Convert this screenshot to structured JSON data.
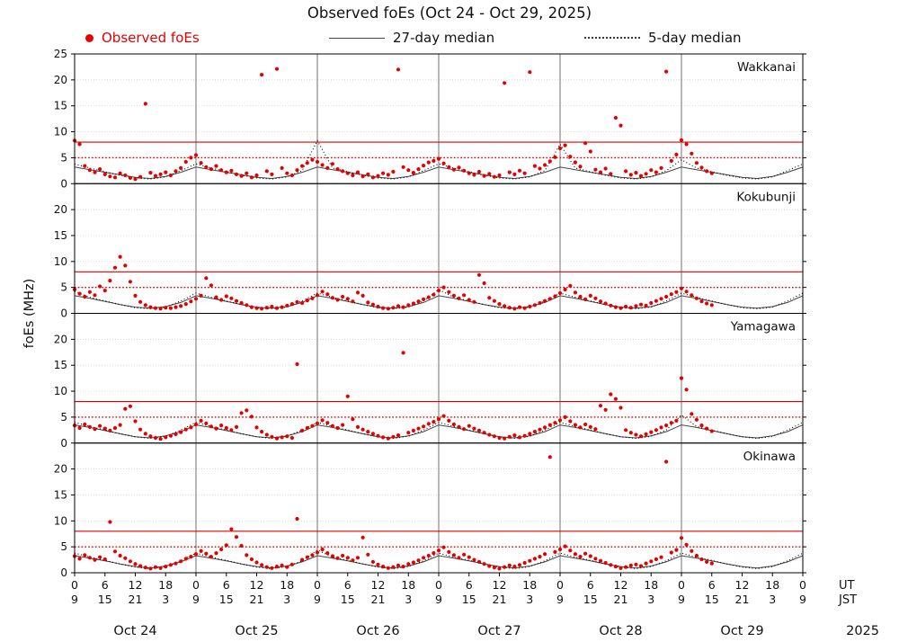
{
  "title": "Observed foEs (Oct 24 - Oct 29, 2025)",
  "legend": [
    {
      "label": "Observed foEs",
      "type": "scatter"
    },
    {
      "label": "27-day median",
      "type": "solid-line"
    },
    {
      "label": "5-day median",
      "type": "dotted-line"
    }
  ],
  "colors": {
    "observed": "#e50000",
    "median27": "#444444",
    "median5": "#000000",
    "threshold": "#dd0000",
    "grid": "#c9c9c9",
    "dayline": "#606060"
  },
  "axes": {
    "ylabel": "foEs (MHz)",
    "ylim": [
      0,
      25
    ],
    "y_ticks": [
      0,
      5,
      10,
      15,
      20,
      25
    ],
    "x_hours_total": 144,
    "x_tick_interval_hours": 6,
    "ut_cycle": [
      "0",
      "6",
      "12",
      "18"
    ],
    "jst_cycle": [
      "9",
      "15",
      "21",
      "3"
    ],
    "ut_axis_label": "UT",
    "jst_axis_label": "JST",
    "dates": [
      "Oct 24",
      "Oct 25",
      "Oct 26",
      "Oct 27",
      "Oct 28",
      "Oct 29"
    ],
    "year_label": "2025"
  },
  "chart_data": [
    {
      "type": "scatter",
      "station": "Wakkanai",
      "thresholds": {
        "solid_red_mhz": 8.0,
        "dotted_red_mhz": 5.0
      },
      "observed_start_hour": 0,
      "observed_step_hours": 1,
      "observed": [
        8.3,
        7.6,
        3.4,
        2.6,
        2.2,
        2.8,
        1.8,
        1.4,
        1.2,
        2.0,
        1.6,
        1.1,
        0.9,
        1.3,
        15.4,
        2.1,
        1.5,
        1.8,
        2.2,
        1.6,
        2.4,
        3.0,
        4.2,
        5.0,
        5.5,
        4.0,
        3.2,
        2.8,
        3.4,
        2.6,
        2.2,
        2.5,
        1.8,
        1.5,
        2.0,
        1.2,
        1.6,
        21.0,
        2.4,
        1.8,
        22.1,
        3.0,
        2.0,
        1.6,
        2.6,
        3.4,
        4.0,
        4.6,
        4.2,
        3.6,
        3.0,
        3.8,
        2.8,
        2.4,
        2.0,
        1.6,
        2.2,
        1.4,
        1.8,
        1.2,
        1.5,
        2.0,
        1.7,
        2.3,
        22.0,
        3.2,
        2.6,
        2.1,
        2.8,
        3.5,
        4.1,
        4.4,
        4.8,
        3.9,
        3.2,
        2.7,
        3.1,
        2.5,
        2.0,
        1.7,
        2.3,
        1.5,
        1.9,
        1.3,
        1.6,
        19.4,
        2.2,
        1.8,
        2.5,
        2.0,
        21.5,
        3.4,
        2.9,
        3.6,
        4.3,
        5.1,
        6.8,
        7.4,
        5.2,
        4.1,
        3.3,
        7.8,
        6.2,
        2.7,
        2.2,
        2.9,
        1.9,
        12.7,
        11.2,
        2.4,
        1.7,
        2.1,
        1.5,
        1.9,
        2.6,
        2.2,
        3.0,
        21.6,
        4.4,
        5.6,
        8.4,
        7.6,
        5.8,
        4.0,
        3.1,
        2.4,
        2.0
      ],
      "median27": {
        "step_hours": 3,
        "values": [
          3.2,
          2.7,
          2.2,
          1.7,
          1.2,
          1.0,
          1.4,
          2.2,
          3.2,
          2.7,
          2.2,
          1.7,
          1.2,
          1.0,
          1.4,
          2.2,
          3.2,
          2.7,
          2.2,
          1.7,
          1.2,
          1.0,
          1.4,
          2.2,
          3.2,
          2.7,
          2.2,
          1.7,
          1.2,
          1.0,
          1.4,
          2.2,
          3.2,
          2.7,
          2.2,
          1.7,
          1.2,
          1.0,
          1.4,
          2.2,
          3.2,
          2.7,
          2.2,
          1.7,
          1.2,
          1.0,
          1.4,
          2.2,
          3.2
        ]
      },
      "median5": {
        "step_hours": 3,
        "values": [
          3.8,
          3.0,
          2.3,
          1.6,
          1.1,
          0.9,
          1.3,
          2.5,
          3.8,
          3.0,
          2.3,
          1.6,
          1.1,
          0.9,
          1.3,
          2.5,
          8.3,
          3.0,
          2.3,
          1.6,
          1.1,
          0.9,
          1.3,
          2.5,
          3.8,
          3.0,
          2.3,
          1.6,
          1.1,
          0.9,
          1.3,
          2.5,
          7.6,
          3.0,
          2.3,
          1.6,
          1.1,
          0.9,
          1.3,
          2.5,
          4.6,
          3.0,
          2.3,
          1.6,
          1.1,
          0.9,
          1.3,
          2.5,
          3.8
        ]
      }
    },
    {
      "type": "scatter",
      "station": "Kokubunji",
      "thresholds": {
        "solid_red_mhz": 8.0,
        "dotted_red_mhz": 5.0
      },
      "observed_start_hour": 0,
      "observed_step_hours": 1,
      "observed": [
        4.6,
        3.8,
        3.2,
        4.1,
        3.5,
        5.2,
        4.4,
        6.3,
        8.8,
        10.9,
        9.2,
        6.1,
        3.4,
        2.2,
        1.6,
        1.2,
        1.0,
        0.9,
        1.1,
        1.0,
        1.2,
        1.4,
        1.8,
        2.3,
        2.8,
        3.4,
        6.8,
        5.4,
        3.1,
        2.6,
        3.3,
        2.9,
        2.4,
        2.0,
        1.6,
        1.2,
        1.0,
        0.9,
        1.1,
        1.3,
        1.0,
        1.2,
        1.5,
        1.8,
        2.2,
        2.0,
        2.5,
        2.9,
        3.5,
        4.2,
        3.7,
        3.0,
        2.6,
        3.2,
        2.8,
        2.3,
        4.0,
        3.4,
        2.1,
        1.7,
        1.3,
        1.0,
        0.9,
        1.1,
        1.4,
        1.2,
        1.6,
        1.9,
        2.3,
        2.7,
        3.1,
        3.6,
        4.4,
        5.0,
        4.1,
        3.4,
        2.9,
        3.5,
        2.6,
        2.2,
        7.4,
        5.8,
        3.0,
        2.4,
        1.8,
        1.4,
        1.1,
        0.9,
        1.2,
        1.0,
        1.3,
        1.6,
        2.0,
        2.4,
        2.8,
        3.3,
        3.9,
        4.6,
        5.3,
        4.0,
        3.2,
        2.7,
        3.4,
        2.9,
        2.3,
        1.9,
        1.5,
        1.2,
        1.0,
        1.3,
        1.1,
        1.4,
        1.7,
        1.5,
        2.0,
        2.4,
        2.8,
        3.2,
        3.7,
        4.1,
        4.8,
        4.2,
        3.5,
        2.9,
        2.3,
        1.9,
        1.6
      ],
      "median27": {
        "step_hours": 3,
        "values": [
          3.4,
          2.9,
          2.3,
          1.7,
          1.2,
          1.0,
          1.3,
          2.1,
          3.4,
          2.9,
          2.3,
          1.7,
          1.2,
          1.0,
          1.3,
          2.1,
          3.4,
          2.9,
          2.3,
          1.7,
          1.2,
          1.0,
          1.3,
          2.1,
          3.4,
          2.9,
          2.3,
          1.7,
          1.2,
          1.0,
          1.3,
          2.1,
          3.4,
          2.9,
          2.3,
          1.7,
          1.2,
          1.0,
          1.3,
          2.1,
          3.4,
          2.9,
          2.3,
          1.7,
          1.2,
          1.0,
          1.3,
          2.1,
          3.4
        ]
      },
      "median5": {
        "step_hours": 3,
        "values": [
          4.2,
          3.1,
          2.4,
          1.7,
          1.1,
          0.9,
          1.2,
          2.4,
          3.9,
          3.1,
          2.4,
          1.7,
          1.1,
          0.9,
          1.2,
          2.4,
          3.9,
          3.1,
          2.4,
          1.7,
          1.1,
          0.9,
          1.2,
          2.4,
          4.6,
          3.1,
          2.4,
          1.7,
          1.1,
          0.9,
          1.2,
          2.4,
          3.9,
          3.1,
          2.4,
          1.7,
          1.1,
          0.9,
          1.2,
          2.4,
          3.9,
          3.1,
          2.4,
          1.7,
          1.1,
          0.9,
          1.2,
          2.4,
          3.9
        ]
      }
    },
    {
      "type": "scatter",
      "station": "Yamagawa",
      "thresholds": {
        "solid_red_mhz": 8.0,
        "dotted_red_mhz": 5.0
      },
      "observed_start_hour": 0,
      "observed_step_hours": 1,
      "observed": [
        3.4,
        2.9,
        3.6,
        3.1,
        2.7,
        3.3,
        2.8,
        2.4,
        2.9,
        3.5,
        6.6,
        7.1,
        4.2,
        2.6,
        1.8,
        1.3,
        1.0,
        0.8,
        1.1,
        1.4,
        1.7,
        2.1,
        2.6,
        3.0,
        3.6,
        4.3,
        3.8,
        3.2,
        2.8,
        3.4,
        2.9,
        2.5,
        3.1,
        5.8,
        6.3,
        5.1,
        3.0,
        2.2,
        1.6,
        1.2,
        0.9,
        1.1,
        1.3,
        1.0,
        15.2,
        2.4,
        2.9,
        3.3,
        3.8,
        4.4,
        3.9,
        3.3,
        2.9,
        3.5,
        9.0,
        4.6,
        3.1,
        2.6,
        2.2,
        1.8,
        1.4,
        1.1,
        0.9,
        1.2,
        1.5,
        17.4,
        2.0,
        2.4,
        2.8,
        3.2,
        3.7,
        4.1,
        4.6,
        5.2,
        4.3,
        3.6,
        3.1,
        2.7,
        3.3,
        2.8,
        2.4,
        2.0,
        1.6,
        1.3,
        1.0,
        0.9,
        1.2,
        1.5,
        1.1,
        1.4,
        1.8,
        2.2,
        2.6,
        3.0,
        3.5,
        3.9,
        4.4,
        5.0,
        4.2,
        3.5,
        3.0,
        3.6,
        3.1,
        2.7,
        7.2,
        6.4,
        9.4,
        8.5,
        6.8,
        2.5,
        2.0,
        1.6,
        1.3,
        1.7,
        2.1,
        2.5,
        3.0,
        3.4,
        3.9,
        4.3,
        12.5,
        10.3,
        5.6,
        4.5,
        3.4,
        2.8,
        2.3
      ],
      "median27": {
        "step_hours": 3,
        "values": [
          3.5,
          3.0,
          2.4,
          1.8,
          1.2,
          1.0,
          1.4,
          2.2,
          3.5,
          3.0,
          2.4,
          1.8,
          1.2,
          1.0,
          1.4,
          2.2,
          3.5,
          3.0,
          2.4,
          1.8,
          1.2,
          1.0,
          1.4,
          2.2,
          3.5,
          3.0,
          2.4,
          1.8,
          1.2,
          1.0,
          1.4,
          2.2,
          3.5,
          3.0,
          2.4,
          1.8,
          1.2,
          1.0,
          1.4,
          2.2,
          3.5,
          3.0,
          2.4,
          1.8,
          1.2,
          1.0,
          1.4,
          2.2,
          3.5
        ]
      },
      "median5": {
        "step_hours": 3,
        "values": [
          4.0,
          3.2,
          2.5,
          1.8,
          1.2,
          0.9,
          1.3,
          2.5,
          4.0,
          3.2,
          2.5,
          1.8,
          1.2,
          0.9,
          1.3,
          2.5,
          4.0,
          3.2,
          2.5,
          1.8,
          1.2,
          0.9,
          1.3,
          2.5,
          4.0,
          3.2,
          2.5,
          1.8,
          1.2,
          0.9,
          1.3,
          2.5,
          4.0,
          3.2,
          2.5,
          1.8,
          1.2,
          0.9,
          1.3,
          2.5,
          5.4,
          3.2,
          2.5,
          1.8,
          1.2,
          0.9,
          1.3,
          2.5,
          4.0
        ]
      }
    },
    {
      "type": "scatter",
      "station": "Okinawa",
      "thresholds": {
        "solid_red_mhz": 8.0,
        "dotted_red_mhz": 5.0
      },
      "observed_start_hour": 0,
      "observed_step_hours": 1,
      "observed": [
        3.2,
        2.7,
        3.4,
        2.9,
        2.5,
        3.0,
        2.6,
        9.8,
        4.1,
        3.3,
        2.8,
        2.2,
        1.7,
        1.3,
        1.0,
        0.8,
        1.1,
        0.9,
        1.2,
        1.5,
        1.8,
        2.2,
        2.7,
        3.1,
        3.6,
        4.2,
        3.7,
        3.1,
        3.8,
        4.5,
        5.3,
        8.4,
        6.9,
        5.2,
        3.4,
        2.6,
        2.0,
        1.5,
        1.1,
        0.9,
        1.2,
        1.4,
        1.1,
        1.6,
        10.4,
        2.5,
        3.0,
        3.4,
        3.9,
        4.5,
        3.8,
        3.2,
        2.8,
        3.3,
        2.9,
        2.4,
        2.9,
        6.8,
        3.5,
        2.1,
        1.6,
        1.2,
        0.9,
        1.1,
        1.4,
        1.2,
        1.7,
        2.0,
        2.4,
        2.9,
        3.3,
        3.8,
        4.3,
        4.9,
        4.0,
        3.4,
        2.9,
        3.5,
        3.0,
        2.5,
        2.1,
        1.7,
        1.3,
        1.0,
        0.8,
        1.1,
        1.4,
        1.2,
        1.5,
        1.9,
        2.3,
        2.7,
        3.1,
        3.6,
        22.3,
        4.0,
        4.5,
        5.1,
        4.3,
        3.6,
        3.1,
        3.7,
        3.2,
        2.7,
        2.3,
        1.9,
        1.5,
        1.2,
        0.9,
        1.1,
        1.4,
        1.6,
        1.3,
        1.8,
        2.2,
        2.6,
        3.0,
        21.4,
        3.9,
        4.4,
        6.7,
        5.4,
        4.2,
        3.3,
        2.6,
        2.1,
        1.8
      ],
      "median27": {
        "step_hours": 3,
        "values": [
          3.3,
          2.8,
          2.3,
          1.7,
          1.2,
          0.9,
          1.3,
          2.1,
          3.3,
          2.8,
          2.3,
          1.7,
          1.2,
          0.9,
          1.3,
          2.1,
          3.3,
          2.8,
          2.3,
          1.7,
          1.2,
          0.9,
          1.3,
          2.1,
          3.3,
          2.8,
          2.3,
          1.7,
          1.2,
          0.9,
          1.3,
          2.1,
          3.3,
          2.8,
          2.3,
          1.7,
          1.2,
          0.9,
          1.3,
          2.1,
          3.3,
          2.8,
          2.3,
          1.7,
          1.2,
          0.9,
          1.3,
          2.1,
          3.3
        ]
      },
      "median5": {
        "step_hours": 3,
        "values": [
          3.8,
          3.0,
          2.4,
          1.7,
          1.1,
          0.8,
          1.2,
          2.3,
          3.8,
          3.0,
          2.4,
          1.7,
          1.1,
          0.8,
          1.2,
          2.3,
          4.4,
          3.0,
          2.4,
          1.7,
          1.1,
          0.8,
          1.2,
          2.3,
          3.8,
          3.0,
          2.4,
          1.7,
          1.1,
          0.8,
          1.2,
          2.3,
          3.8,
          3.0,
          2.4,
          1.7,
          1.1,
          0.8,
          1.2,
          2.3,
          3.8,
          3.0,
          2.4,
          1.7,
          1.1,
          0.8,
          1.2,
          2.3,
          3.8
        ]
      }
    }
  ]
}
